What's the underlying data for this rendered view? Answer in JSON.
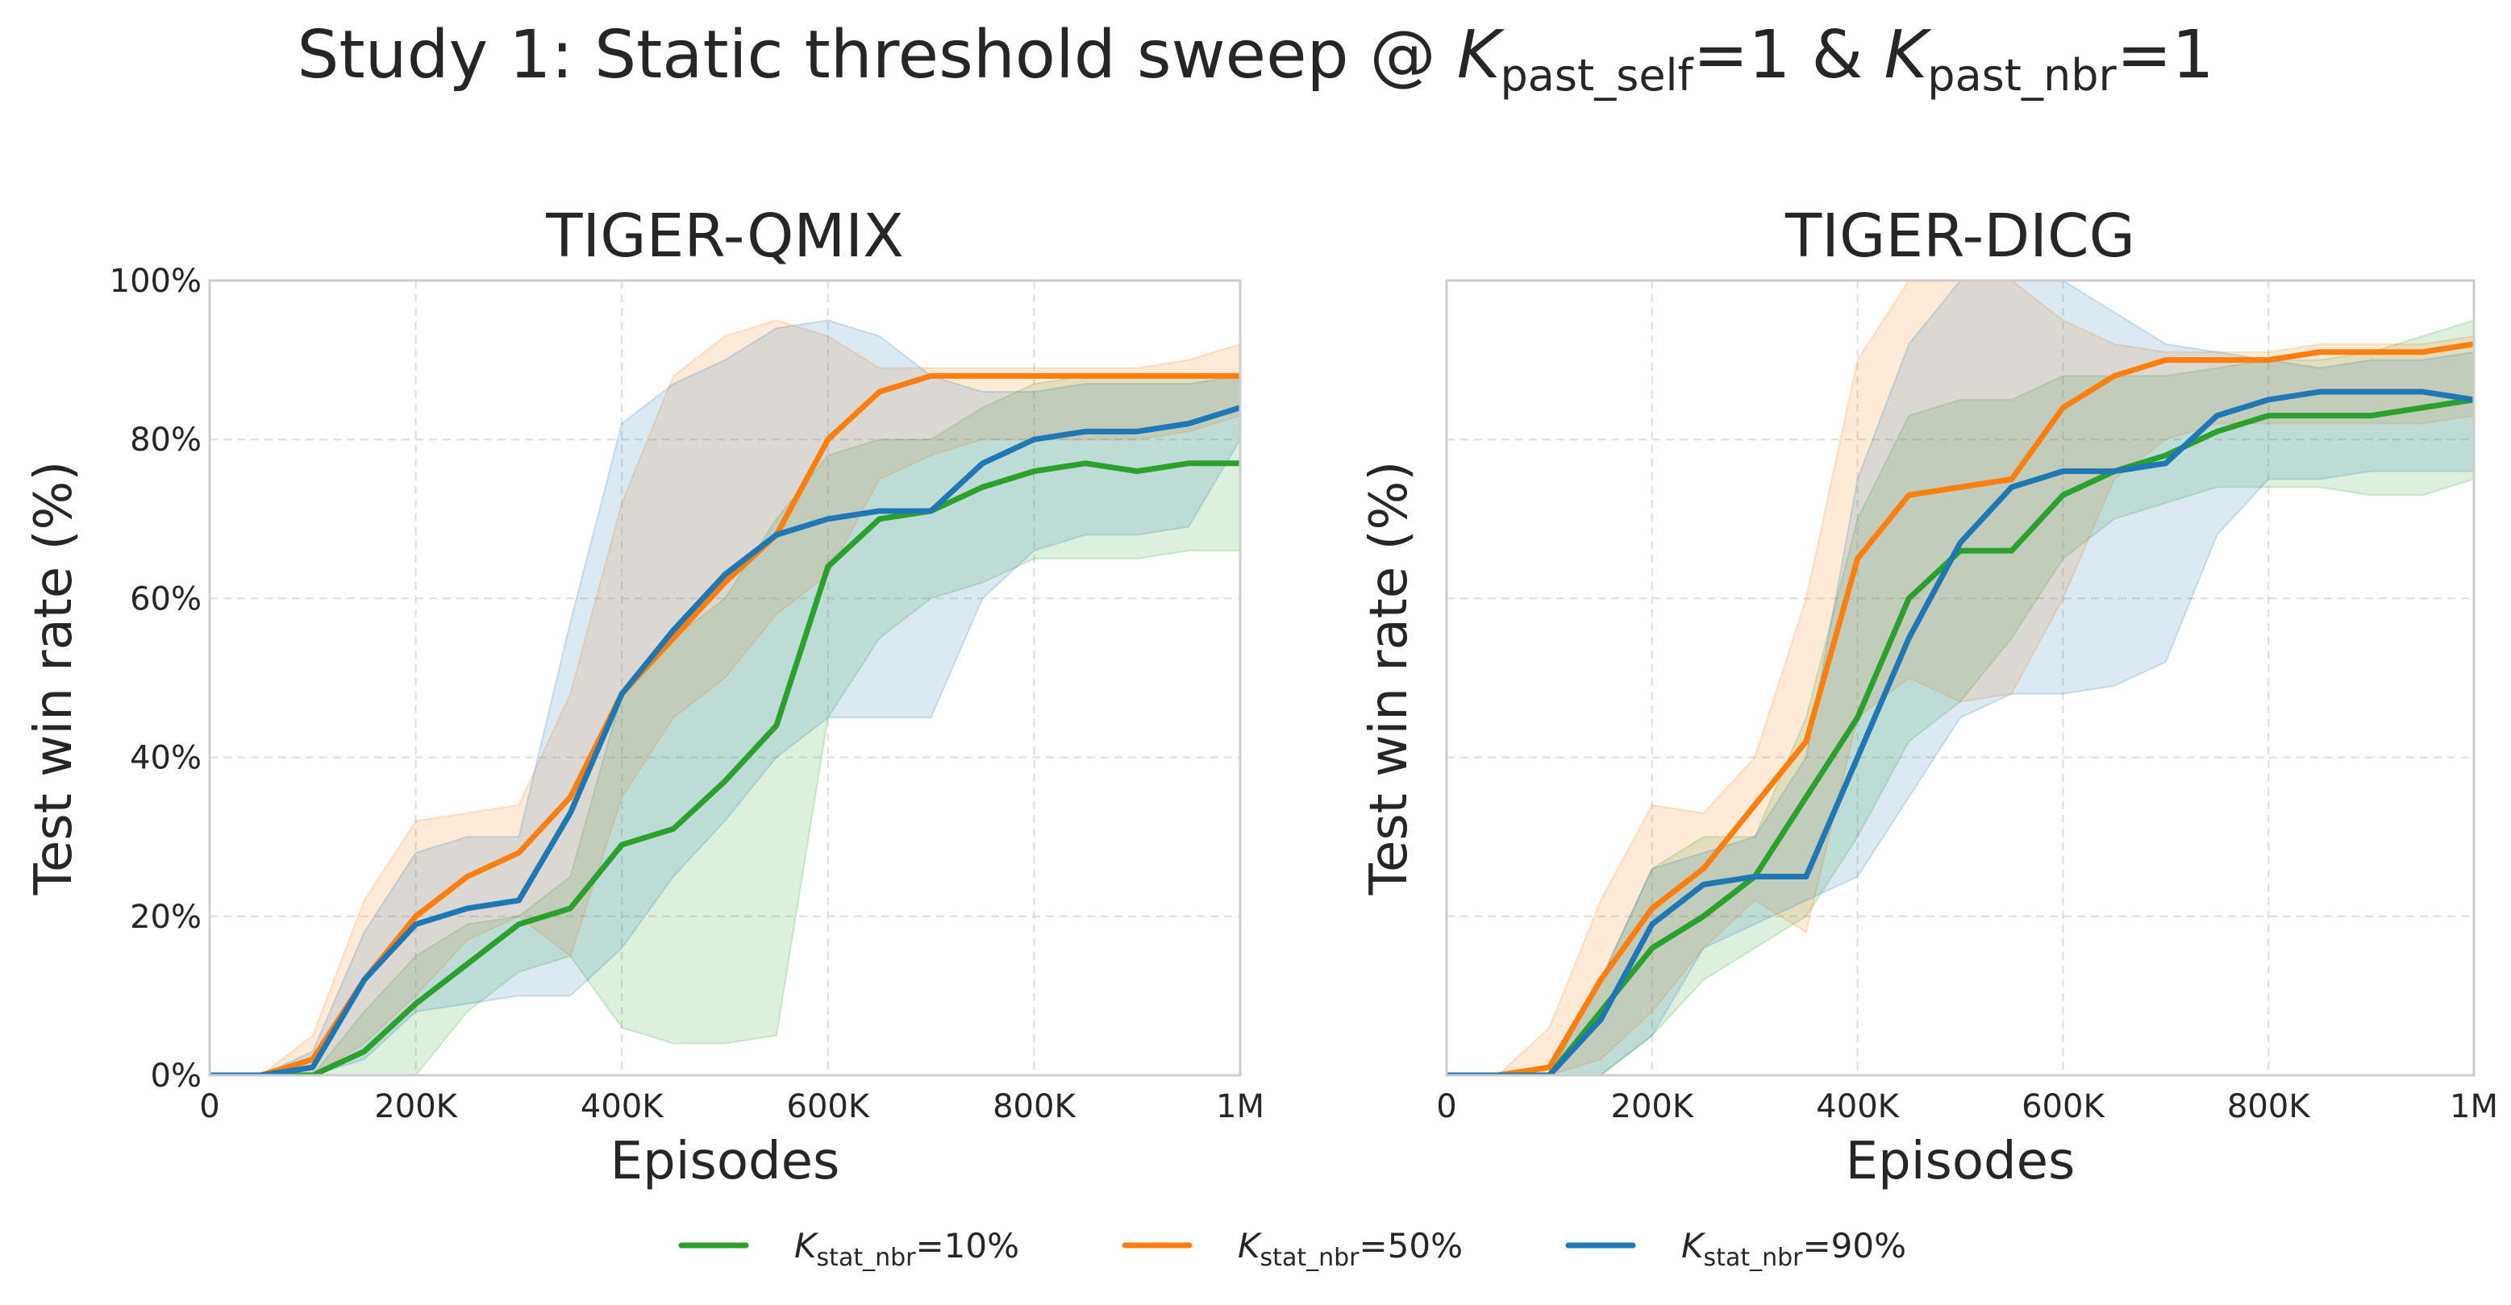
{
  "title": {
    "prefix": "Study 1: Static threshold sweep @ ",
    "k1": "K",
    "sub1": "past_self",
    "mid": "=1 & ",
    "k2": "K",
    "sub2": "past_nbr",
    "suffix": "=1"
  },
  "legend": [
    {
      "k": "K",
      "sub": "stat_nbr",
      "value": "=10%",
      "color": "#2ca02c"
    },
    {
      "k": "K",
      "sub": "stat_nbr",
      "value": "=50%",
      "color": "#ff7f0e"
    },
    {
      "k": "K",
      "sub": "stat_nbr",
      "value": "=90%",
      "color": "#1f77b4"
    }
  ],
  "chart_data": [
    {
      "type": "line",
      "title": "TIGER-QMIX",
      "xlabel": "Episodes",
      "ylabel": "Test win rate (%)",
      "xlim": [
        0,
        1000000
      ],
      "ylim": [
        0,
        100
      ],
      "xticks": [
        "0",
        "200K",
        "400K",
        "600K",
        "800K",
        "1M"
      ],
      "yticks": [
        "0%",
        "20%",
        "40%",
        "60%",
        "80%",
        "100%"
      ],
      "grid": true,
      "x": [
        0,
        50000,
        100000,
        150000,
        200000,
        250000,
        300000,
        350000,
        400000,
        450000,
        500000,
        550000,
        600000,
        650000,
        700000,
        750000,
        800000,
        850000,
        900000,
        950000,
        1000000
      ],
      "series": [
        {
          "name": "K_stat_nbr=10%",
          "color": "#2ca02c",
          "values": [
            0,
            0,
            0,
            3,
            9,
            14,
            19,
            21,
            29,
            31,
            37,
            44,
            64,
            70,
            71,
            74,
            76,
            77,
            76,
            77,
            77
          ],
          "upper": [
            0,
            0,
            0,
            8,
            15,
            19,
            20,
            25,
            48,
            55,
            60,
            70,
            78,
            80,
            80,
            84,
            87,
            88,
            88,
            88,
            88
          ],
          "lower": [
            0,
            0,
            0,
            0,
            0,
            8,
            13,
            15,
            6,
            4,
            4,
            5,
            45,
            55,
            60,
            62,
            65,
            65,
            65,
            66,
            66
          ]
        },
        {
          "name": "K_stat_nbr=50%",
          "color": "#ff7f0e",
          "values": [
            0,
            0,
            2,
            12,
            20,
            25,
            28,
            35,
            48,
            55,
            62,
            68,
            80,
            86,
            88,
            88,
            88,
            88,
            88,
            88,
            88
          ],
          "upper": [
            0,
            0,
            5,
            22,
            32,
            33,
            34,
            48,
            72,
            88,
            93,
            95,
            93,
            89,
            89,
            89,
            89,
            89,
            89,
            90,
            92
          ],
          "lower": [
            0,
            0,
            0,
            4,
            10,
            17,
            20,
            15,
            35,
            45,
            50,
            58,
            63,
            75,
            78,
            80,
            80,
            80,
            80,
            81,
            83
          ]
        },
        {
          "name": "K_stat_nbr=90%",
          "color": "#1f77b4",
          "values": [
            0,
            0,
            1,
            12,
            19,
            21,
            22,
            33,
            48,
            56,
            63,
            68,
            70,
            71,
            71,
            77,
            80,
            81,
            81,
            82,
            84
          ],
          "upper": [
            0,
            0,
            3,
            18,
            28,
            30,
            30,
            57,
            82,
            87,
            90,
            94,
            95,
            93,
            88,
            86,
            86,
            87,
            87,
            87,
            88
          ],
          "lower": [
            0,
            0,
            0,
            2,
            8,
            9,
            10,
            10,
            16,
            25,
            32,
            40,
            45,
            45,
            45,
            60,
            66,
            68,
            68,
            69,
            80
          ]
        }
      ]
    },
    {
      "type": "line",
      "title": "TIGER-DICG",
      "xlabel": "Episodes",
      "ylabel": "Test win rate (%)",
      "xlim": [
        0,
        1000000
      ],
      "ylim": [
        0,
        100
      ],
      "xticks": [
        "0",
        "200K",
        "400K",
        "600K",
        "800K",
        "1M"
      ],
      "yticks": [],
      "grid": true,
      "x": [
        0,
        50000,
        100000,
        150000,
        200000,
        250000,
        300000,
        350000,
        400000,
        450000,
        500000,
        550000,
        600000,
        650000,
        700000,
        750000,
        800000,
        850000,
        900000,
        950000,
        1000000
      ],
      "series": [
        {
          "name": "K_stat_nbr=10%",
          "color": "#2ca02c",
          "values": [
            0,
            0,
            0,
            8,
            16,
            20,
            25,
            35,
            45,
            60,
            66,
            66,
            73,
            76,
            78,
            81,
            83,
            83,
            83,
            84,
            85
          ],
          "upper": [
            0,
            0,
            0,
            12,
            26,
            30,
            30,
            45,
            70,
            83,
            85,
            85,
            88,
            88,
            88,
            89,
            90,
            90,
            91,
            93,
            95
          ],
          "lower": [
            0,
            0,
            0,
            0,
            5,
            12,
            16,
            20,
            30,
            42,
            47,
            55,
            65,
            70,
            72,
            74,
            74,
            74,
            73,
            73,
            75
          ]
        },
        {
          "name": "K_stat_nbr=50%",
          "color": "#ff7f0e",
          "values": [
            0,
            0,
            1,
            12,
            21,
            26,
            34,
            42,
            65,
            73,
            74,
            75,
            84,
            88,
            90,
            90,
            90,
            91,
            91,
            91,
            92
          ],
          "upper": [
            0,
            0,
            6,
            22,
            34,
            33,
            40,
            60,
            90,
            100,
            100,
            100,
            95,
            92,
            91,
            91,
            91,
            92,
            92,
            92,
            93
          ],
          "lower": [
            0,
            0,
            0,
            2,
            8,
            16,
            22,
            18,
            45,
            50,
            47,
            48,
            60,
            75,
            80,
            82,
            82,
            82,
            82,
            82,
            83
          ]
        },
        {
          "name": "K_stat_nbr=90%",
          "color": "#1f77b4",
          "values": [
            0,
            0,
            0,
            7,
            19,
            24,
            25,
            25,
            40,
            55,
            67,
            74,
            76,
            76,
            77,
            83,
            85,
            86,
            86,
            86,
            85
          ],
          "upper": [
            0,
            0,
            0,
            12,
            26,
            28,
            30,
            40,
            75,
            92,
            100,
            100,
            100,
            96,
            92,
            91,
            90,
            89,
            90,
            90,
            91
          ],
          "lower": [
            0,
            0,
            0,
            0,
            5,
            16,
            19,
            22,
            25,
            35,
            45,
            48,
            48,
            49,
            52,
            68,
            75,
            75,
            76,
            76,
            76
          ]
        }
      ]
    }
  ]
}
